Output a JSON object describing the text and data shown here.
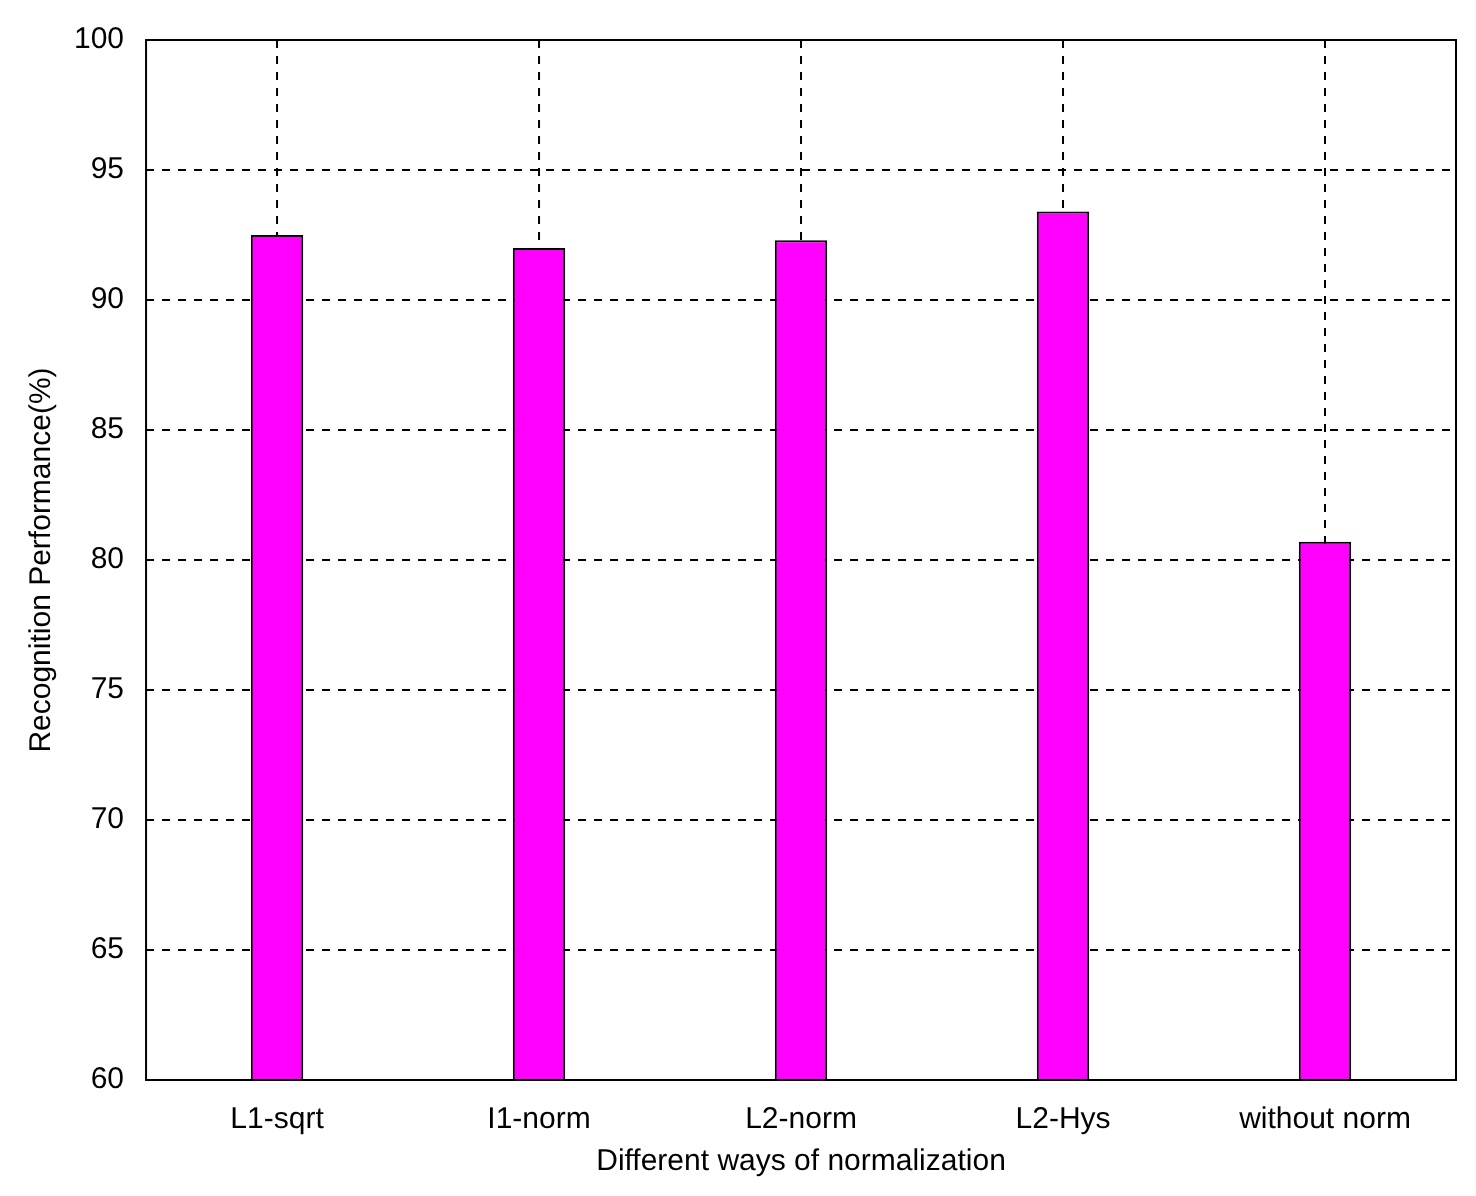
{
  "chart_data": {
    "type": "bar",
    "xlabel": "Different ways of normalization",
    "ylabel": "Recognition Performance(%)",
    "categories": [
      "L1-sqrt",
      "I1-norm",
      "L2-norm",
      "L2-Hys",
      "without norm"
    ],
    "values": [
      92.5,
      92.0,
      92.3,
      93.4,
      80.7
    ],
    "color": "#ff00ff",
    "ylim": [
      60,
      100
    ],
    "yticks": [
      60,
      65,
      70,
      75,
      80,
      85,
      90,
      95,
      100
    ],
    "grid": true
  }
}
